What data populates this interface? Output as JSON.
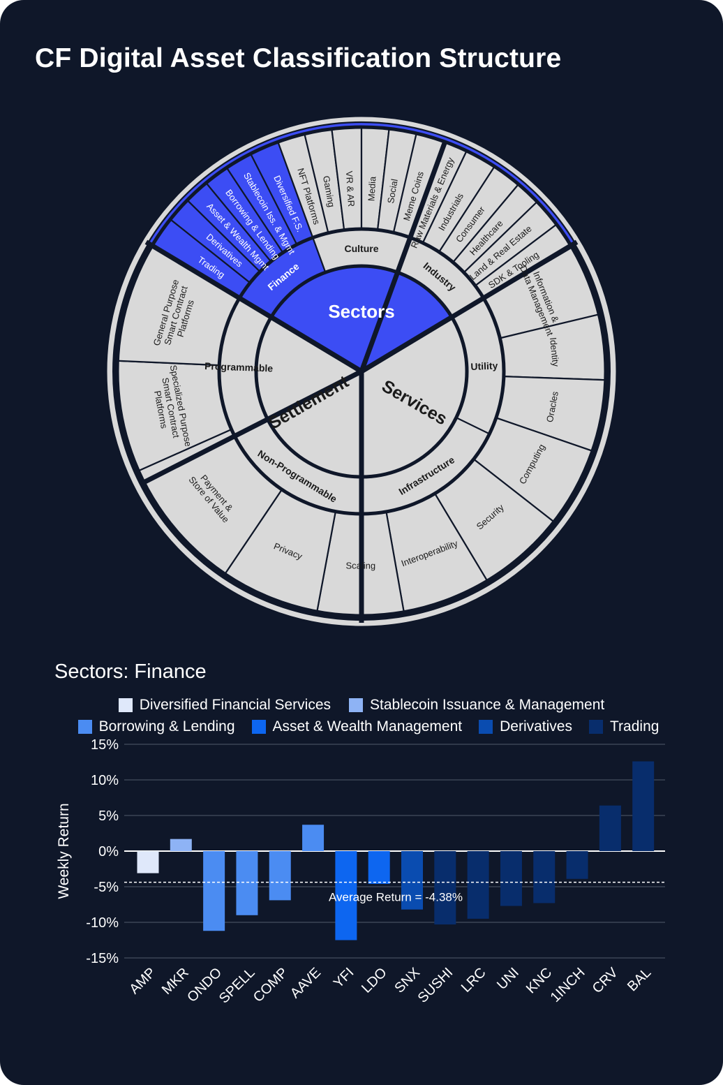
{
  "title": "CF Digital Asset Classification Structure",
  "wheel": {
    "center_label": "Sectors",
    "groups": [
      {
        "label": "Settlement"
      },
      {
        "label": "Services"
      }
    ],
    "subsectors": [
      {
        "label": "Finance"
      },
      {
        "label": "Culture"
      },
      {
        "label": "Industry"
      },
      {
        "label": "Utility"
      },
      {
        "label": "Infrastructure"
      },
      {
        "label": "Non-Programmable"
      },
      {
        "label": "Programmable"
      }
    ],
    "industries": [
      {
        "label": "Trading"
      },
      {
        "label": "Derivatives"
      },
      {
        "label": "Asset & Wealth Mgmt"
      },
      {
        "label": "Borrowing & Lending"
      },
      {
        "label": "Stablecoin Iss. & Mgmt"
      },
      {
        "label": "Diversified F.S."
      },
      {
        "label": "NFT Platforms"
      },
      {
        "label": "Gaming"
      },
      {
        "label": "VR & AR"
      },
      {
        "label": "Media"
      },
      {
        "label": "Social"
      },
      {
        "label": "Meme Coins"
      },
      {
        "label": "Raw Materials & Energy"
      },
      {
        "label": "Industrials"
      },
      {
        "label": "Consumer"
      },
      {
        "label": "Healthcare"
      },
      {
        "label": "Land & Real Estate"
      },
      {
        "label": "SDK & Tooling"
      },
      {
        "label": "Information & Data Management"
      },
      {
        "label": "Identity"
      },
      {
        "label": "Oracles"
      },
      {
        "label": "Computing"
      },
      {
        "label": "Security"
      },
      {
        "label": "Interoperability"
      },
      {
        "label": "Scaling"
      },
      {
        "label": "Privacy"
      },
      {
        "label": "Payment & Store of Value"
      },
      {
        "label": "Specialized Purpose Smart Contract Platforms"
      },
      {
        "label": "General Purpose Smart Contract Platforms"
      }
    ],
    "colors": {
      "highlight": "#3c4df4",
      "segment": "#d9d9d9",
      "gap": "#0f1729",
      "text_dark": "#1a1a1a",
      "text_light": "#ffffff"
    }
  },
  "chart_data": {
    "type": "bar",
    "title": "Sectors: Finance",
    "xlabel": "",
    "ylabel": "Weekly Return",
    "ylim": [
      -15,
      15
    ],
    "yticks": [
      15,
      10,
      5,
      0,
      -5,
      -10,
      -15
    ],
    "ytick_labels": [
      "15%",
      "10%",
      "5%",
      "0%",
      "-5%",
      "-10%",
      "-15%"
    ],
    "categories": [
      "AMP",
      "MKR",
      "ONDO",
      "SPELL",
      "COMP",
      "AAVE",
      "YFI",
      "LDO",
      "SNX",
      "SUSHI",
      "LRC",
      "UNI",
      "KNC",
      "1INCH",
      "CRV",
      "BAL"
    ],
    "values": [
      -3.1,
      1.7,
      -11.2,
      -9.0,
      -6.9,
      3.7,
      -12.5,
      -4.6,
      -8.2,
      -10.3,
      -9.5,
      -7.7,
      -7.3,
      -3.9,
      6.4,
      12.6
    ],
    "bar_groups": [
      0,
      1,
      2,
      2,
      2,
      2,
      3,
      3,
      4,
      5,
      5,
      5,
      5,
      5,
      5,
      5
    ],
    "series": [
      {
        "name": "Diversified Financial Services",
        "color": "#dfe8fa"
      },
      {
        "name": "Stablecoin Issuance & Management",
        "color": "#8eb3f5"
      },
      {
        "name": "Borrowing & Lending",
        "color": "#4b8cf2"
      },
      {
        "name": "Asset & Wealth Management",
        "color": "#0d66f0"
      },
      {
        "name": "Derivatives",
        "color": "#0a4cb0"
      },
      {
        "name": "Trading",
        "color": "#082d6c"
      }
    ],
    "average": {
      "value": -4.38,
      "label": "Average Return = -4.38%"
    }
  }
}
